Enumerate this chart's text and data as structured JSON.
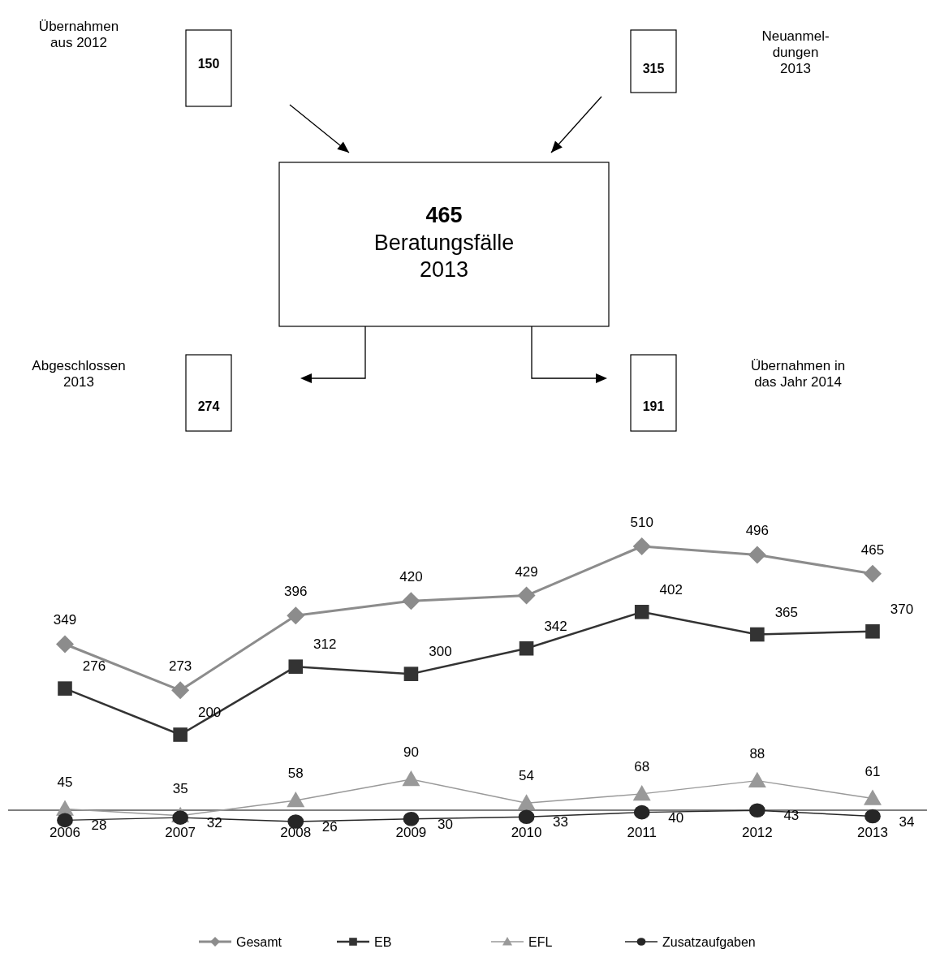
{
  "chart_data": [
    {
      "type": "other",
      "categories": [
        "Übernahmen\naus 2012",
        "Neuanmel-\ndungen\n2013",
        "Beratungsfälle\n2013",
        "Abgeschlossen\n2013",
        "Übernahmen in\ndas Jahr 2014"
      ],
      "values": [
        150,
        315,
        465,
        274,
        191
      ],
      "data_labels": true
    },
    {
      "type": "line",
      "categories": [
        null,
        null,
        null,
        null,
        null,
        null,
        null,
        null
      ],
      "series": [
        {
          "name": "Gesamt",
          "color": "#8c8c8c",
          "marker": "diamond",
          "values": [
            349,
            273,
            396,
            420,
            429,
            510,
            496,
            465
          ]
        },
        {
          "name": "EB",
          "color": "#333333",
          "marker": "square",
          "values": [
            276,
            200,
            312,
            300,
            342,
            402,
            365,
            370
          ]
        }
      ],
      "data_labels": true,
      "legend": "bottom"
    },
    {
      "type": "line",
      "categories": [
        "2006",
        "2007",
        "2008",
        "2009",
        "2010",
        "2011",
        "2012",
        "2013"
      ],
      "series": [
        {
          "name": "EFL",
          "color": "#999999",
          "marker": "triangle",
          "values": [
            45,
            35,
            58,
            90,
            54,
            68,
            88,
            61
          ]
        },
        {
          "name": "Zusatzaufgaben",
          "color": "#262626",
          "marker": "circle",
          "values": [
            28,
            32,
            26,
            30,
            33,
            40,
            43,
            34
          ]
        }
      ],
      "data_labels": true,
      "legend": "bottom"
    }
  ]
}
